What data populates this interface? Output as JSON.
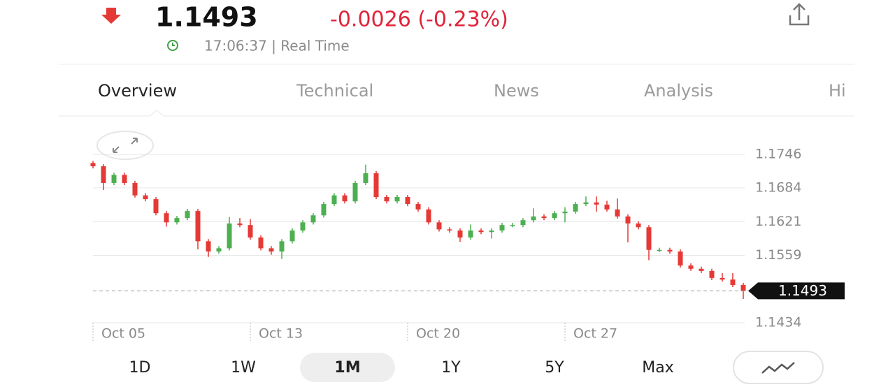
{
  "header": {
    "price": "1.1493",
    "change": "-0.0026 (-0.23%)",
    "time": "17:06:37 | Real Time"
  },
  "tabs": [
    "Overview",
    "Technical",
    "News",
    "Analysis",
    "Hi"
  ],
  "timeframes": [
    "1D",
    "1W",
    "1M",
    "1Y",
    "5Y",
    "Max"
  ],
  "active_timeframe": 2,
  "chart_data": {
    "type": "candlestick",
    "up_color": "#4caf50",
    "down_color": "#e53935",
    "categories": [
      "Oct 05",
      null,
      null,
      null,
      null,
      null,
      null,
      null,
      null,
      null,
      null,
      null,
      null,
      null,
      null,
      "Oct 13",
      null,
      null,
      null,
      null,
      null,
      null,
      null,
      null,
      null,
      null,
      null,
      null,
      null,
      null,
      "Oct 20",
      null,
      null,
      null,
      null,
      null,
      null,
      null,
      null,
      null,
      null,
      null,
      null,
      null,
      null,
      "Oct 27",
      null,
      null,
      null,
      null,
      null,
      null,
      null,
      null,
      null,
      null,
      null,
      null,
      null,
      null,
      null,
      null,
      null
    ],
    "open": [
      1.173,
      1.1724,
      1.1693,
      1.1708,
      1.1693,
      1.167,
      1.1663,
      1.1637,
      1.162,
      1.1628,
      1.1641,
      1.1585,
      1.1566,
      1.1572,
      1.1618,
      1.1615,
      1.1592,
      1.1572,
      1.1566,
      1.1585,
      1.1605,
      1.162,
      1.1633,
      1.1654,
      1.167,
      1.1659,
      1.1693,
      1.1711,
      1.1667,
      1.1659,
      1.1667,
      1.1654,
      1.1644,
      1.162,
      1.1607,
      1.1605,
      1.1592,
      1.1605,
      1.1602,
      1.1605,
      1.1615,
      1.1615,
      1.1624,
      1.1631,
      1.1628,
      1.1637,
      1.164,
      1.1654,
      1.1657,
      1.1653,
      1.1644,
      1.1631,
      1.1618,
      1.1611,
      1.1569,
      1.1569,
      1.1566,
      1.154,
      1.1534,
      1.153,
      1.1517,
      1.1514,
      1.1504
    ],
    "high": [
      1.1734,
      1.1728,
      1.1712,
      1.1712,
      1.1697,
      1.1674,
      1.1667,
      1.1641,
      1.1632,
      1.1645,
      1.1645,
      1.1589,
      1.1576,
      1.163,
      1.1628,
      1.1626,
      1.1596,
      1.1576,
      1.1589,
      1.1609,
      1.1624,
      1.1637,
      1.1658,
      1.1674,
      1.1674,
      1.1697,
      1.1727,
      1.1715,
      1.1671,
      1.1671,
      1.1671,
      1.1658,
      1.1648,
      1.1624,
      1.1611,
      1.1609,
      1.1616,
      1.1609,
      1.1609,
      1.1619,
      1.1619,
      1.1628,
      1.1646,
      1.1635,
      1.1641,
      1.1648,
      1.1658,
      1.1668,
      1.1668,
      1.166,
      1.1664,
      1.1635,
      1.1622,
      1.1615,
      1.1573,
      1.1573,
      1.157,
      1.1544,
      1.1538,
      1.1534,
      1.1526,
      1.1526,
      1.1508
    ],
    "low": [
      1.172,
      1.168,
      1.1689,
      1.1689,
      1.1666,
      1.1659,
      1.1633,
      1.1612,
      1.1616,
      1.1624,
      1.157,
      1.1556,
      1.1562,
      1.1568,
      1.1611,
      1.1588,
      1.1568,
      1.156,
      1.1552,
      1.1581,
      1.1601,
      1.1616,
      1.1629,
      1.165,
      1.1655,
      1.1655,
      1.1689,
      1.1663,
      1.1655,
      1.1655,
      1.165,
      1.164,
      1.1616,
      1.1603,
      1.1601,
      1.1584,
      1.1588,
      1.1598,
      1.159,
      1.1601,
      1.1611,
      1.1611,
      1.162,
      1.1624,
      1.1624,
      1.162,
      1.1636,
      1.165,
      1.164,
      1.164,
      1.1627,
      1.1583,
      1.1607,
      1.155,
      1.1565,
      1.1562,
      1.1536,
      1.153,
      1.1526,
      1.1513,
      1.151,
      1.15,
      1.1478
    ],
    "close": [
      1.1724,
      1.1693,
      1.1708,
      1.1693,
      1.167,
      1.1663,
      1.1637,
      1.162,
      1.1628,
      1.1641,
      1.1585,
      1.1566,
      1.1572,
      1.1618,
      1.1615,
      1.1592,
      1.1572,
      1.1566,
      1.1585,
      1.1605,
      1.162,
      1.1633,
      1.1654,
      1.167,
      1.1659,
      1.1693,
      1.1711,
      1.1667,
      1.1659,
      1.1667,
      1.1654,
      1.1644,
      1.162,
      1.1607,
      1.1605,
      1.1592,
      1.1605,
      1.1602,
      1.1605,
      1.1615,
      1.1615,
      1.1624,
      1.1631,
      1.1628,
      1.1637,
      1.164,
      1.1654,
      1.1657,
      1.1653,
      1.1644,
      1.1631,
      1.1618,
      1.1611,
      1.1569,
      1.1569,
      1.1566,
      1.154,
      1.1534,
      1.153,
      1.1517,
      1.1514,
      1.1504,
      1.1493
    ],
    "last_price": 1.1493,
    "ylim": [
      1.1434,
      1.1746
    ],
    "yticks": [
      1.1746,
      1.1684,
      1.1621,
      1.1559,
      1.1434
    ],
    "grid": true
  }
}
